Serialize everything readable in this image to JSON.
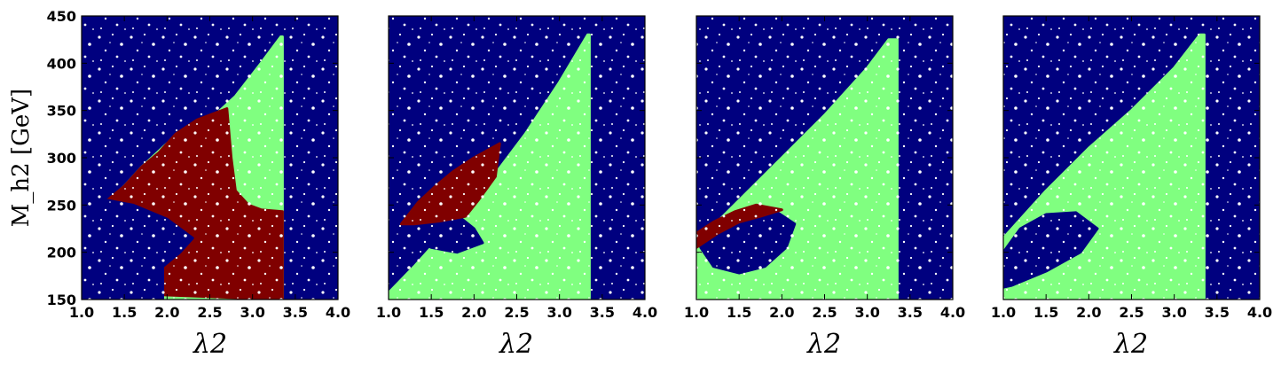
{
  "colors": {
    "excluded": "#00007f",
    "allowed": "#80ff80",
    "region_red": "#800000",
    "speckle": "#ffffff"
  },
  "chart_data": [
    {
      "type": "scatter",
      "title": "",
      "xlabel": "λ2",
      "ylabel": "M_h2 [GeV]",
      "xlim": [
        1.0,
        4.0
      ],
      "ylim": [
        150,
        450
      ],
      "xticks": [
        "1.0",
        "1.5",
        "2.0",
        "2.5",
        "3.0",
        "3.5",
        "4.0"
      ],
      "yticks": [
        "150",
        "200",
        "250",
        "300",
        "350",
        "400",
        "450"
      ],
      "show_yticks": true,
      "background_region": "excluded",
      "regions": [
        {
          "color": "allowed",
          "points": [
            [
              1.35,
              258
            ],
            [
              1.5,
              270
            ],
            [
              1.7,
              290
            ],
            [
              2.0,
              315
            ],
            [
              2.5,
              340
            ],
            [
              2.8,
              365
            ],
            [
              3.1,
              400
            ],
            [
              3.33,
              428
            ],
            [
              3.35,
              428
            ],
            [
              3.35,
              150
            ],
            [
              1.95,
              150
            ],
            [
              1.95,
              225
            ],
            [
              1.6,
              250
            ],
            [
              1.35,
              258
            ]
          ]
        },
        {
          "color": "region_red",
          "points": [
            [
              1.3,
              255
            ],
            [
              1.5,
              270
            ],
            [
              1.7,
              290
            ],
            [
              1.9,
              305
            ],
            [
              2.1,
              325
            ],
            [
              2.35,
              340
            ],
            [
              2.7,
              352
            ],
            [
              2.75,
              300
            ],
            [
              2.8,
              265
            ],
            [
              2.95,
              250
            ],
            [
              3.1,
              245
            ],
            [
              3.35,
              243
            ],
            [
              3.35,
              150
            ],
            [
              1.95,
              155
            ],
            [
              1.95,
              185
            ],
            [
              2.15,
              200
            ],
            [
              2.3,
              215
            ],
            [
              2.0,
              235
            ],
            [
              1.6,
              250
            ],
            [
              1.3,
              255
            ]
          ]
        },
        {
          "color": "excluded",
          "points": [
            [
              1.0,
              150
            ],
            [
              1.95,
              150
            ],
            [
              1.95,
              185
            ],
            [
              2.15,
              200
            ],
            [
              2.3,
              215
            ],
            [
              2.0,
              235
            ],
            [
              1.6,
              250
            ],
            [
              1.3,
              255
            ],
            [
              1.0,
              252
            ]
          ]
        }
      ]
    },
    {
      "type": "scatter",
      "title": "",
      "xlabel": "λ2",
      "ylabel": "",
      "xlim": [
        1.0,
        4.0
      ],
      "ylim": [
        150,
        450
      ],
      "xticks": [
        "1.0",
        "1.5",
        "2.0",
        "2.5",
        "3.0",
        "3.5",
        "4.0"
      ],
      "yticks": [],
      "show_yticks": false,
      "background_region": "excluded",
      "regions": [
        {
          "color": "allowed",
          "points": [
            [
              1.0,
              150
            ],
            [
              1.0,
              157
            ],
            [
              1.3,
              185
            ],
            [
              1.7,
              225
            ],
            [
              2.1,
              265
            ],
            [
              2.6,
              325
            ],
            [
              3.0,
              380
            ],
            [
              3.33,
              430
            ],
            [
              3.35,
              430
            ],
            [
              3.35,
              150
            ]
          ]
        },
        {
          "color": "excluded",
          "points": [
            [
              1.1,
              230
            ],
            [
              1.4,
              245
            ],
            [
              1.75,
              243
            ],
            [
              2.0,
              225
            ],
            [
              2.1,
              210
            ],
            [
              1.8,
              200
            ],
            [
              1.5,
              205
            ],
            [
              1.2,
              220
            ]
          ]
        },
        {
          "color": "region_red",
          "points": [
            [
              1.15,
              230
            ],
            [
              1.35,
              253
            ],
            [
              1.55,
              270
            ],
            [
              1.75,
              285
            ],
            [
              2.0,
              300
            ],
            [
              2.3,
              315
            ],
            [
              2.25,
              280
            ],
            [
              2.05,
              255
            ],
            [
              1.9,
              238
            ],
            [
              1.6,
              233
            ],
            [
              1.3,
              230
            ]
          ]
        }
      ]
    },
    {
      "type": "scatter",
      "title": "",
      "xlabel": "λ2",
      "ylabel": "",
      "xlim": [
        1.0,
        4.0
      ],
      "ylim": [
        150,
        450
      ],
      "xticks": [
        "1.0",
        "1.5",
        "2.0",
        "2.5",
        "3.0",
        "3.5",
        "4.0"
      ],
      "yticks": [],
      "show_yticks": false,
      "background_region": "excluded",
      "regions": [
        {
          "color": "allowed",
          "points": [
            [
              1.0,
              150
            ],
            [
              1.0,
              210
            ],
            [
              1.5,
              255
            ],
            [
              2.0,
              300
            ],
            [
              2.5,
              345
            ],
            [
              3.0,
              395
            ],
            [
              3.25,
              425
            ],
            [
              3.35,
              425
            ],
            [
              3.35,
              150
            ]
          ]
        },
        {
          "color": "excluded",
          "points": [
            [
              1.05,
              205
            ],
            [
              1.3,
              235
            ],
            [
              1.6,
              247
            ],
            [
              1.9,
              245
            ],
            [
              2.15,
              230
            ],
            [
              2.05,
              205
            ],
            [
              1.8,
              185
            ],
            [
              1.5,
              178
            ],
            [
              1.2,
              185
            ]
          ]
        },
        {
          "color": "region_red",
          "points": [
            [
              1.0,
              205
            ],
            [
              1.0,
              220
            ],
            [
              1.2,
              232
            ],
            [
              1.45,
              243
            ],
            [
              1.7,
              250
            ],
            [
              2.0,
              245
            ],
            [
              1.75,
              238
            ],
            [
              1.5,
              232
            ],
            [
              1.25,
              220
            ]
          ]
        }
      ]
    },
    {
      "type": "scatter",
      "title": "",
      "xlabel": "λ2",
      "ylabel": "",
      "xlim": [
        1.0,
        4.0
      ],
      "ylim": [
        150,
        450
      ],
      "xticks": [
        "1.0",
        "1.5",
        "2.0",
        "2.5",
        "3.0",
        "3.5",
        "4.0"
      ],
      "yticks": [],
      "show_yticks": false,
      "background_region": "excluded",
      "regions": [
        {
          "color": "allowed",
          "points": [
            [
              1.0,
              150
            ],
            [
              1.0,
              215
            ],
            [
              1.5,
              265
            ],
            [
              2.0,
              310
            ],
            [
              2.5,
              350
            ],
            [
              3.0,
              395
            ],
            [
              3.3,
              430
            ],
            [
              3.35,
              430
            ],
            [
              3.35,
              150
            ]
          ]
        },
        {
          "color": "excluded",
          "points": [
            [
              1.0,
              200
            ],
            [
              1.2,
              225
            ],
            [
              1.5,
              240
            ],
            [
              1.85,
              242
            ],
            [
              2.1,
              225
            ],
            [
              1.9,
              200
            ],
            [
              1.5,
              180
            ],
            [
              1.1,
              165
            ],
            [
              1.0,
              163
            ]
          ]
        }
      ]
    }
  ]
}
